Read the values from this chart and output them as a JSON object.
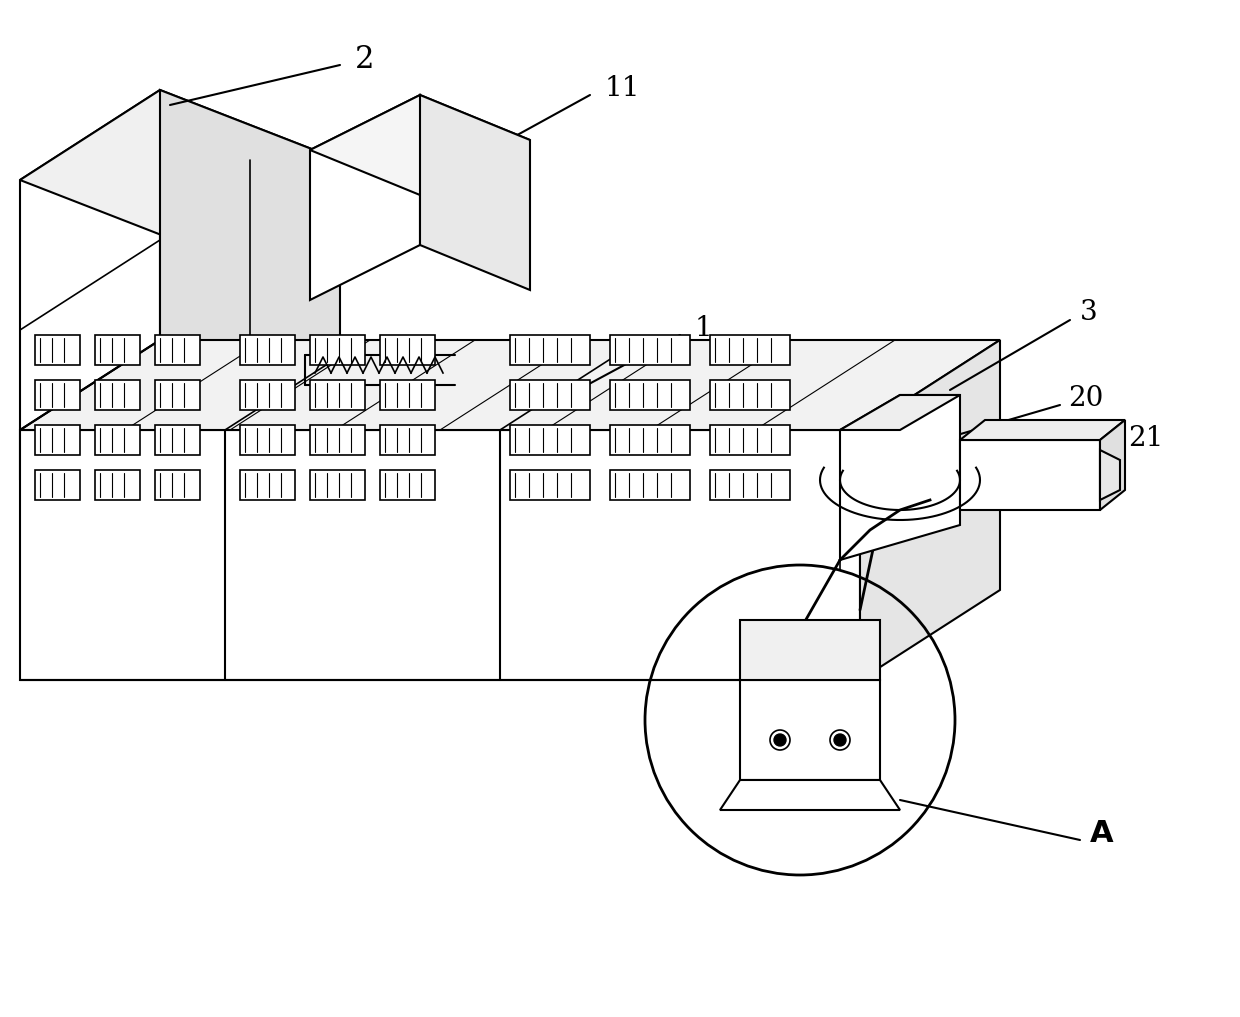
{
  "bg_color": "#ffffff",
  "line_color": "#000000",
  "line_width": 1.5,
  "label_2": "2",
  "label_11": "11",
  "label_1": "1",
  "label_3": "3",
  "label_20": "20",
  "label_21": "21",
  "label_A": "A",
  "font_size_labels": 18,
  "fig_width": 12.4,
  "fig_height": 10.17
}
